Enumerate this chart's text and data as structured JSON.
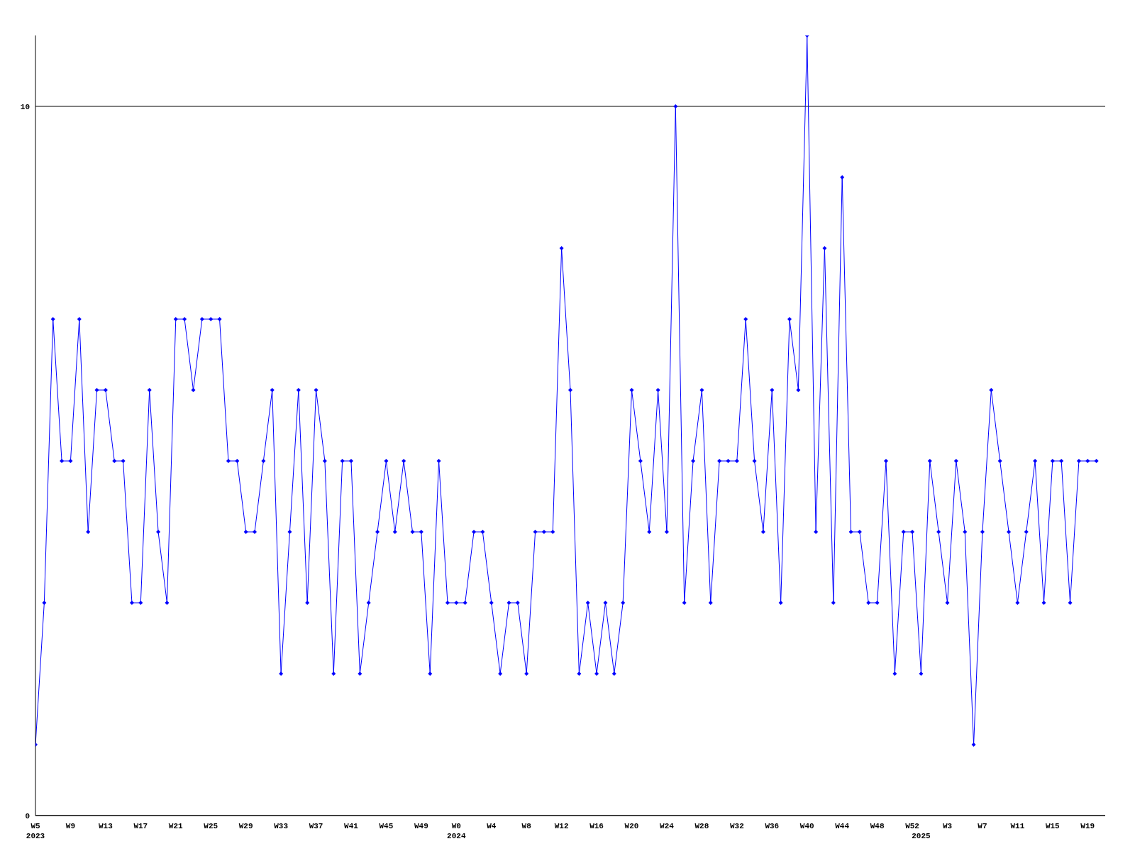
{
  "chart_data": {
    "type": "line",
    "categories": [
      "W5\n2023",
      null,
      null,
      null,
      "W9",
      null,
      null,
      null,
      "W13",
      null,
      null,
      null,
      "W17",
      null,
      null,
      null,
      "W21",
      null,
      null,
      null,
      "W25",
      null,
      null,
      null,
      "W29",
      null,
      null,
      null,
      "W33",
      null,
      null,
      null,
      "W37",
      null,
      null,
      null,
      "W41",
      null,
      null,
      null,
      "W45",
      null,
      null,
      null,
      "W49",
      null,
      null,
      null,
      "W0\n2024",
      null,
      null,
      null,
      "W4",
      null,
      null,
      null,
      "W8",
      null,
      null,
      null,
      "W12",
      null,
      null,
      null,
      "W16",
      null,
      null,
      null,
      "W20",
      null,
      null,
      null,
      "W24",
      null,
      null,
      null,
      "W28",
      null,
      null,
      null,
      "W32",
      null,
      null,
      null,
      "W36",
      null,
      null,
      null,
      "W40",
      null,
      null,
      null,
      "W44",
      null,
      null,
      null,
      "W48",
      null,
      null,
      null,
      "W52",
      "\n2025",
      null,
      null,
      "W3",
      null,
      null,
      null,
      "W7",
      null,
      null,
      null,
      "W11",
      null,
      null,
      null,
      "W15",
      null,
      null,
      null,
      "W19",
      null
    ],
    "values": [
      1,
      3,
      7,
      5,
      5,
      7,
      4,
      6,
      6,
      5,
      5,
      3,
      3,
      6,
      4,
      3,
      7,
      7,
      6,
      7,
      7,
      7,
      5,
      5,
      4,
      4,
      5,
      6,
      2,
      4,
      6,
      3,
      6,
      5,
      2,
      5,
      5,
      2,
      3,
      4,
      5,
      4,
      5,
      4,
      4,
      2,
      5,
      3,
      3,
      3,
      4,
      4,
      3,
      2,
      3,
      3,
      2,
      4,
      4,
      4,
      8,
      6,
      2,
      3,
      2,
      3,
      2,
      3,
      6,
      5,
      4,
      6,
      4,
      10,
      3,
      5,
      6,
      3,
      5,
      5,
      5,
      7,
      5,
      4,
      6,
      3,
      7,
      6,
      11,
      4,
      8,
      3,
      9,
      4,
      4,
      3,
      3,
      5,
      2,
      4,
      4,
      2,
      5,
      4,
      3,
      5,
      4,
      1,
      4,
      6,
      5,
      4,
      3,
      4,
      5,
      3,
      5,
      5,
      3,
      5,
      5,
      5
    ],
    "color": "#0000ff",
    "ylim": [
      0,
      11
    ],
    "yticks": [
      0,
      10
    ],
    "grid": "y",
    "marker": "diamond",
    "line_style": "solid"
  }
}
